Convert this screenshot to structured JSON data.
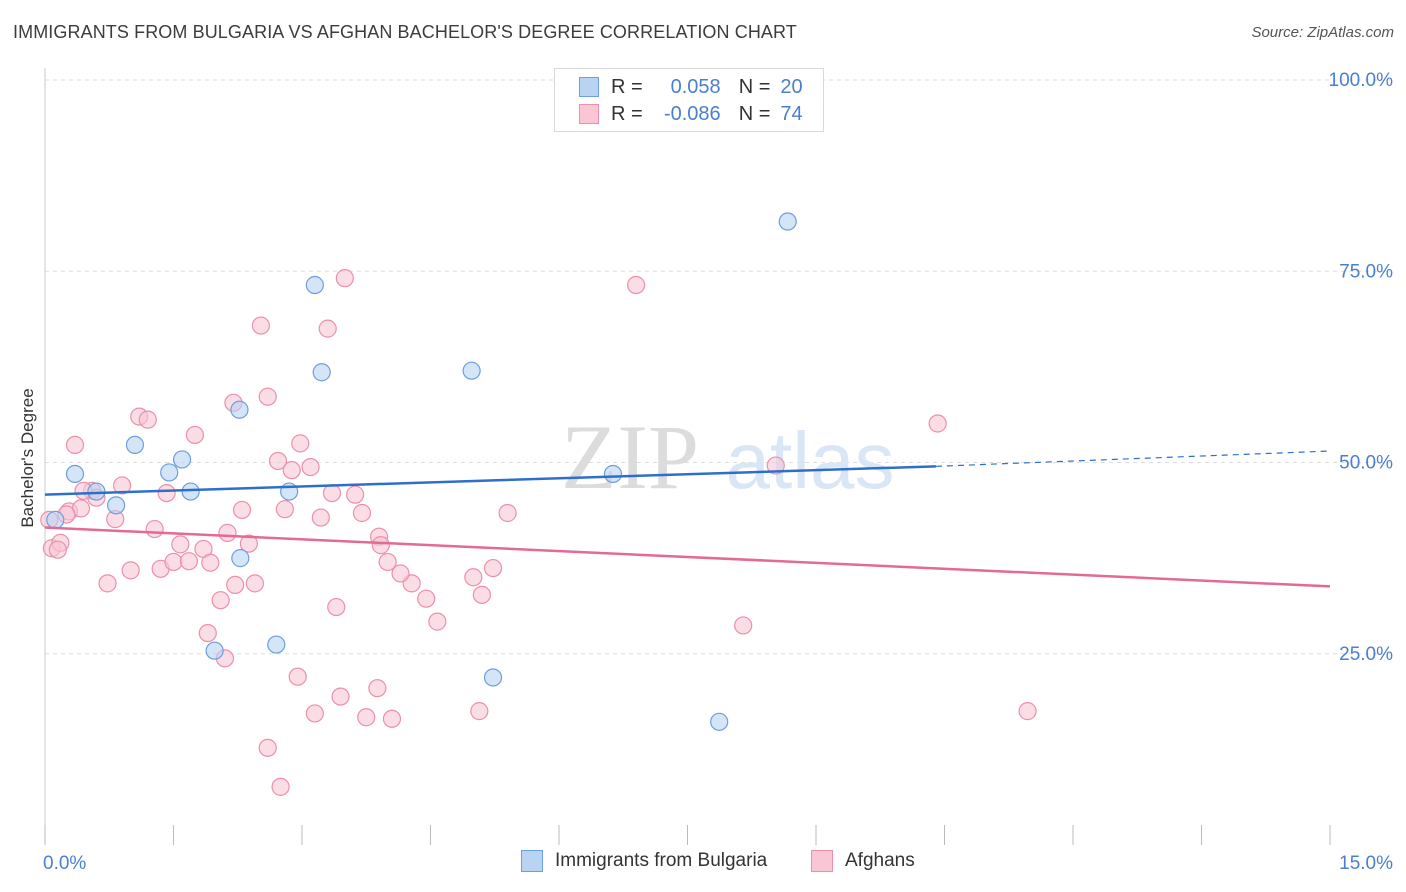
{
  "title": "IMMIGRANTS FROM BULGARIA VS AFGHAN BACHELOR'S DEGREE CORRELATION CHART",
  "source": "Source: ZipAtlas.com",
  "watermark": {
    "zip": "ZIP",
    "atlas": "atlas"
  },
  "legend_top": {
    "rows": [
      {
        "r_label": "R =",
        "r_value": "0.058",
        "n_label": "N =",
        "n_value": "20"
      },
      {
        "r_label": "R =",
        "r_value": "-0.086",
        "n_label": "N =",
        "n_value": "74"
      }
    ]
  },
  "legend_bottom": [
    "Immigrants from Bulgaria",
    "Afghans"
  ],
  "colors": {
    "blue_fill": "#b9d3f3",
    "blue_stroke": "#6d9ee0",
    "blue_line": "#2f6fcc",
    "pink_fill": "#f8c6d4",
    "pink_stroke": "#ec8fab",
    "pink_line": "#e36a94",
    "axis_text": "#4a7fd0",
    "grid": "#dddddd"
  },
  "chart_data": {
    "type": "scatter",
    "title": "IMMIGRANTS FROM BULGARIA VS AFGHAN BACHELOR'S DEGREE CORRELATION CHART",
    "xlabel": "",
    "ylabel": "Bachelor's Degree",
    "xlim": [
      0,
      15
    ],
    "ylim": [
      0,
      100
    ],
    "x_tick_labels": [
      "0.0%",
      "15.0%"
    ],
    "y_tick_labels": [
      "25.0%",
      "50.0%",
      "75.0%",
      "100.0%"
    ],
    "y_ticks": [
      25,
      50,
      75,
      100
    ],
    "grid": true,
    "legend_position": "top-center",
    "series": [
      {
        "name": "Immigrants from Bulgaria",
        "color": "#6d9ee0",
        "x": [
          0.35,
          1.05,
          1.45,
          0.12,
          0.6,
          0.83,
          1.6,
          1.7,
          2.27,
          3.15,
          3.23,
          2.85,
          4.98,
          6.63,
          8.67,
          2.28,
          1.98,
          2.7,
          5.23,
          7.87
        ],
        "y": [
          48.5,
          52.3,
          48.7,
          42.5,
          46.2,
          44.4,
          50.4,
          46.2,
          56.9,
          73.2,
          61.8,
          46.2,
          62.0,
          48.5,
          81.5,
          37.5,
          25.4,
          26.2,
          21.9,
          16.1
        ],
        "trend": {
          "x": [
            0,
            10.4
          ],
          "y": [
            45.8,
            49.5
          ]
        },
        "trend_extension": {
          "x": [
            10.4,
            15
          ],
          "y": [
            49.5,
            51.5
          ]
        }
      },
      {
        "name": "Afghans",
        "color": "#ec8fab",
        "x": [
          0.08,
          0.18,
          0.28,
          0.35,
          0.42,
          0.55,
          0.6,
          0.73,
          0.82,
          0.9,
          1.0,
          1.1,
          1.2,
          1.28,
          1.35,
          1.42,
          1.5,
          1.58,
          1.68,
          1.75,
          1.85,
          1.93,
          2.05,
          2.13,
          2.22,
          2.3,
          2.38,
          2.45,
          2.52,
          2.6,
          2.72,
          2.8,
          2.88,
          2.98,
          3.1,
          3.22,
          3.3,
          3.4,
          3.5,
          3.62,
          3.75,
          3.88,
          4.05,
          4.28,
          4.45,
          4.58,
          5.07,
          5.1,
          5.23,
          5.4,
          1.9,
          2.1,
          2.2,
          2.6,
          2.75,
          2.95,
          3.15,
          3.35,
          3.45,
          3.7,
          3.9,
          3.92,
          4.0,
          4.15,
          5.0,
          6.9,
          8.15,
          8.53,
          10.42,
          11.47,
          0.05,
          0.15,
          0.25,
          0.45
        ],
        "y": [
          38.8,
          39.5,
          43.6,
          52.3,
          44.0,
          46.3,
          45.4,
          34.2,
          42.6,
          47.0,
          35.9,
          56.0,
          55.6,
          41.3,
          36.1,
          46.0,
          37.0,
          39.3,
          37.1,
          53.6,
          38.7,
          36.9,
          32.0,
          40.8,
          34.0,
          43.8,
          39.4,
          34.2,
          67.9,
          58.6,
          50.2,
          43.9,
          49.0,
          52.5,
          49.4,
          42.8,
          67.5,
          31.1,
          74.1,
          45.8,
          16.7,
          20.5,
          16.5,
          34.2,
          32.2,
          29.2,
          17.5,
          32.7,
          36.2,
          43.4,
          27.7,
          24.4,
          57.8,
          12.7,
          7.6,
          22.0,
          17.2,
          46.0,
          19.4,
          43.4,
          40.3,
          39.2,
          37.0,
          35.5,
          35.0,
          73.2,
          28.7,
          49.6,
          55.1,
          17.5,
          42.5,
          38.6,
          43.2,
          46.3
        ],
        "trend": {
          "x": [
            0,
            15
          ],
          "y": [
            41.5,
            33.8
          ]
        }
      }
    ]
  }
}
